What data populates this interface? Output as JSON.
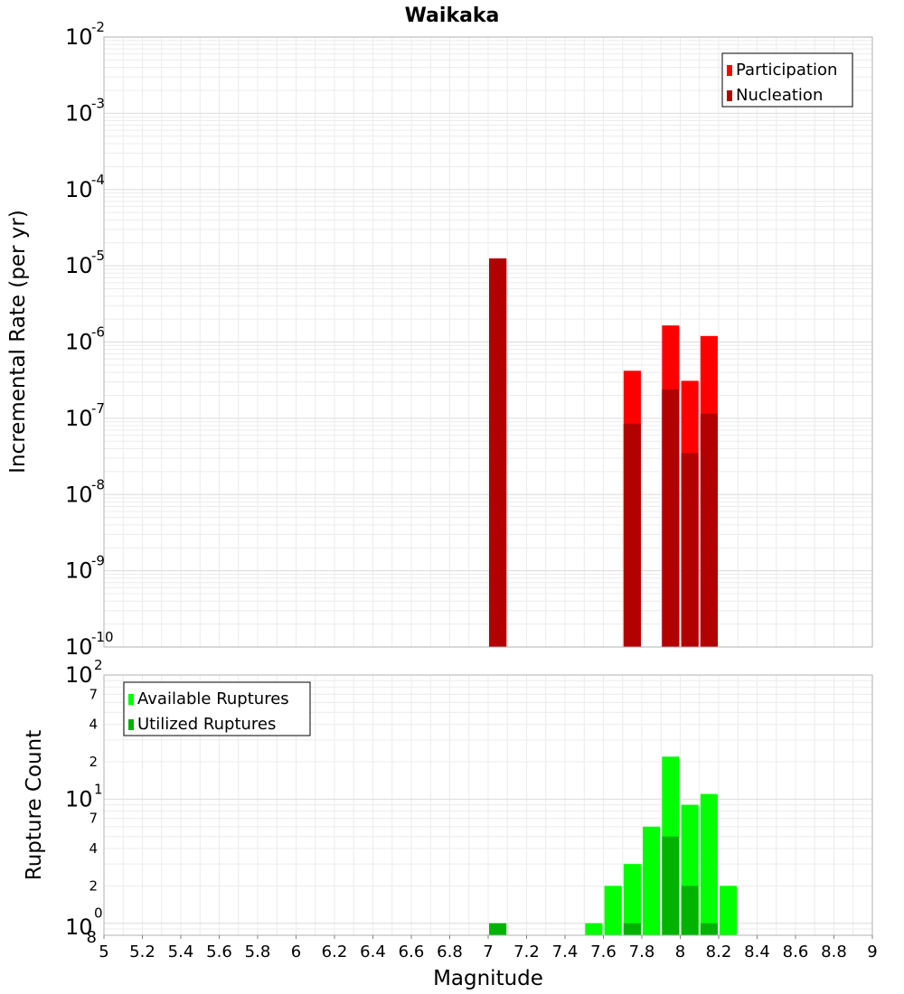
{
  "chart_data": [
    {
      "type": "bar",
      "title": "Waikaka",
      "ylabel": "Incremental Rate (per yr)",
      "xlabel": "",
      "xlim": [
        5,
        9
      ],
      "ylim": [
        1e-10,
        0.01
      ],
      "y_scale": "log",
      "grid": true,
      "legend": "top-right",
      "bar_width": 0.09,
      "series": [
        {
          "name": "Participation",
          "color": "#ff0000",
          "points": [
            {
              "x": 7.05,
              "y": 1.25e-05
            },
            {
              "x": 7.75,
              "y": 4.2e-07
            },
            {
              "x": 7.95,
              "y": 1.65e-06
            },
            {
              "x": 8.05,
              "y": 3.1e-07
            },
            {
              "x": 8.15,
              "y": 1.2e-06
            }
          ]
        },
        {
          "name": "Nucleation",
          "color": "#b30000",
          "points": [
            {
              "x": 7.05,
              "y": 1.25e-05
            },
            {
              "x": 7.75,
              "y": 8.5e-08
            },
            {
              "x": 7.95,
              "y": 2.4e-07
            },
            {
              "x": 8.05,
              "y": 3.5e-08
            },
            {
              "x": 8.15,
              "y": 1.15e-07
            }
          ]
        }
      ],
      "y_ticks": [
        {
          "base": "10",
          "exp": "-2"
        },
        {
          "base": "10",
          "exp": "-3"
        },
        {
          "base": "10",
          "exp": "-4"
        },
        {
          "base": "10",
          "exp": "-5"
        },
        {
          "base": "10",
          "exp": "-6"
        },
        {
          "base": "10",
          "exp": "-7"
        },
        {
          "base": "10",
          "exp": "-8"
        },
        {
          "base": "10",
          "exp": "-9"
        },
        {
          "base": "10",
          "exp": "-10"
        }
      ]
    },
    {
      "type": "bar",
      "title": "",
      "ylabel": "Rupture Count",
      "xlabel": "Magnitude",
      "xlim": [
        5,
        9
      ],
      "ylim": [
        0.8,
        100
      ],
      "y_scale": "log",
      "grid": true,
      "legend": "top-left",
      "bar_width": 0.09,
      "series": [
        {
          "name": "Available Ruptures",
          "color": "#00ff00",
          "points": [
            {
              "x": 7.55,
              "y": 1
            },
            {
              "x": 7.65,
              "y": 2
            },
            {
              "x": 7.75,
              "y": 3
            },
            {
              "x": 7.85,
              "y": 6
            },
            {
              "x": 7.95,
              "y": 22
            },
            {
              "x": 8.05,
              "y": 9
            },
            {
              "x": 8.15,
              "y": 11
            },
            {
              "x": 8.25,
              "y": 2
            }
          ]
        },
        {
          "name": "Utilized Ruptures",
          "color": "#00b300",
          "points": [
            {
              "x": 7.05,
              "y": 1
            },
            {
              "x": 7.75,
              "y": 1
            },
            {
              "x": 7.95,
              "y": 5
            },
            {
              "x": 8.05,
              "y": 2
            },
            {
              "x": 8.15,
              "y": 1
            }
          ]
        }
      ],
      "y_major_ticks": [
        {
          "base": "10",
          "exp": "2"
        },
        {
          "base": "10",
          "exp": "1"
        },
        {
          "base": "10",
          "exp": "0"
        }
      ],
      "y_minor_ticks": [
        "7",
        "4",
        "2",
        "7",
        "4",
        "2",
        "8"
      ],
      "x_ticks": [
        "5",
        "5.2",
        "5.4",
        "5.6",
        "5.8",
        "6",
        "6.2",
        "6.4",
        "6.6",
        "6.8",
        "7",
        "7.2",
        "7.4",
        "7.6",
        "7.8",
        "8",
        "8.2",
        "8.4",
        "8.6",
        "8.8",
        "9"
      ]
    }
  ]
}
